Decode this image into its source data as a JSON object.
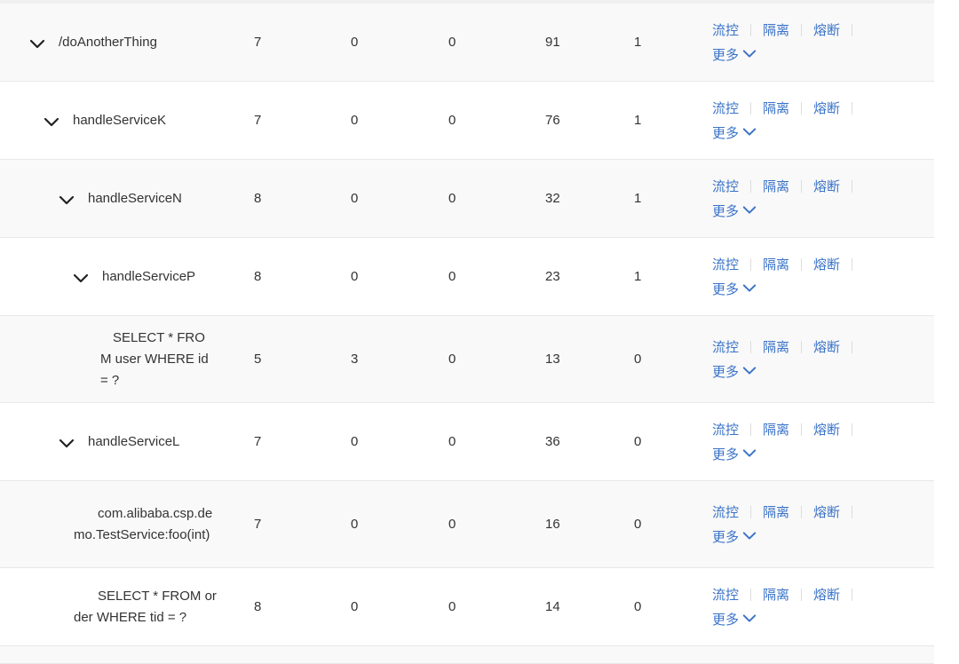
{
  "colors": {
    "link": "#3a73c8",
    "row_alt": "#f9f9f9",
    "text": "#333333"
  },
  "actions": {
    "flow": "流控",
    "isolate": "隔离",
    "degrade": "熔断",
    "more": "更多"
  },
  "rows": [
    {
      "name": "/doAnotherThing",
      "expandable": true,
      "depth": 0,
      "values": [
        "7",
        "0",
        "0",
        "91",
        "1"
      ]
    },
    {
      "name": "handleServiceK",
      "expandable": true,
      "depth": 1,
      "values": [
        "7",
        "0",
        "0",
        "76",
        "1"
      ]
    },
    {
      "name": "handleServiceN",
      "expandable": true,
      "depth": 2,
      "values": [
        "8",
        "0",
        "0",
        "32",
        "1"
      ]
    },
    {
      "name": "handleServiceP",
      "expandable": true,
      "depth": 3,
      "values": [
        "8",
        "0",
        "0",
        "23",
        "1"
      ]
    },
    {
      "name": "SELECT * FROM user WHERE id = ?",
      "expandable": false,
      "depth": 4,
      "values": [
        "5",
        "3",
        "0",
        "13",
        "0"
      ]
    },
    {
      "name": "handleServiceL",
      "expandable": true,
      "depth": 2,
      "values": [
        "7",
        "0",
        "0",
        "36",
        "0"
      ]
    },
    {
      "name": "com.alibaba.csp.demo.TestService:foo(int)",
      "expandable": false,
      "depth": 3,
      "values": [
        "7",
        "0",
        "0",
        "16",
        "0"
      ]
    },
    {
      "name": "SELECT * FROM order WHERE tid = ?",
      "expandable": false,
      "depth": 3,
      "values": [
        "8",
        "0",
        "0",
        "14",
        "0"
      ]
    }
  ]
}
